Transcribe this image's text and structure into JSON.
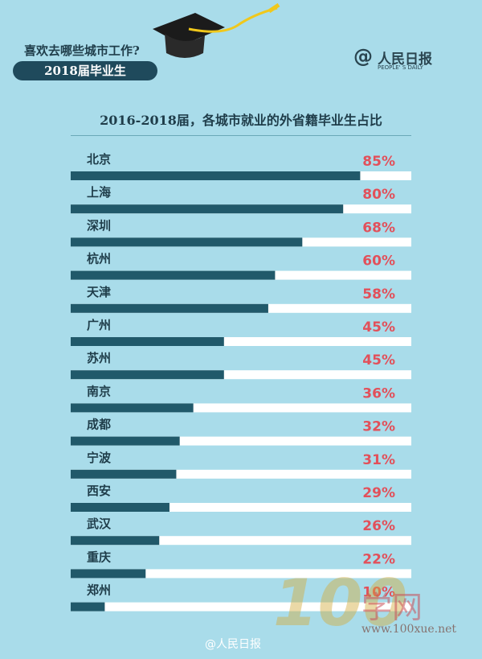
{
  "header": {
    "title": "喜欢去哪些城市工作?",
    "pill": "2018届毕业生"
  },
  "logo": {
    "symbol": "@",
    "name": "人民日报",
    "sub": "PEOPLE' S DAILY"
  },
  "watermark": {
    "number": "100",
    "text": "学网",
    "url": "www.100xue.net"
  },
  "weibo_handle": "@人民日报",
  "colors": {
    "background": "#a9dcea",
    "bar_fill": "#21596a",
    "bar_track": "#ffffff",
    "value_text": "#e2505a"
  },
  "chart_data": {
    "type": "bar",
    "orientation": "horizontal",
    "title": "2016-2018届，各城市就业的外省籍毕业生占比",
    "categories": [
      "北京",
      "上海",
      "深圳",
      "杭州",
      "天津",
      "广州",
      "苏州",
      "南京",
      "成都",
      "宁波",
      "西安",
      "武汉",
      "重庆",
      "郑州"
    ],
    "values": [
      85,
      80,
      68,
      60,
      58,
      45,
      45,
      36,
      32,
      31,
      29,
      26,
      22,
      10
    ],
    "value_labels": [
      "85%",
      "80%",
      "68%",
      "60%",
      "58%",
      "45%",
      "45%",
      "36%",
      "32%",
      "31%",
      "29%",
      "26%",
      "22%",
      "10%"
    ],
    "xlim": [
      0,
      100
    ],
    "unit": "%"
  }
}
